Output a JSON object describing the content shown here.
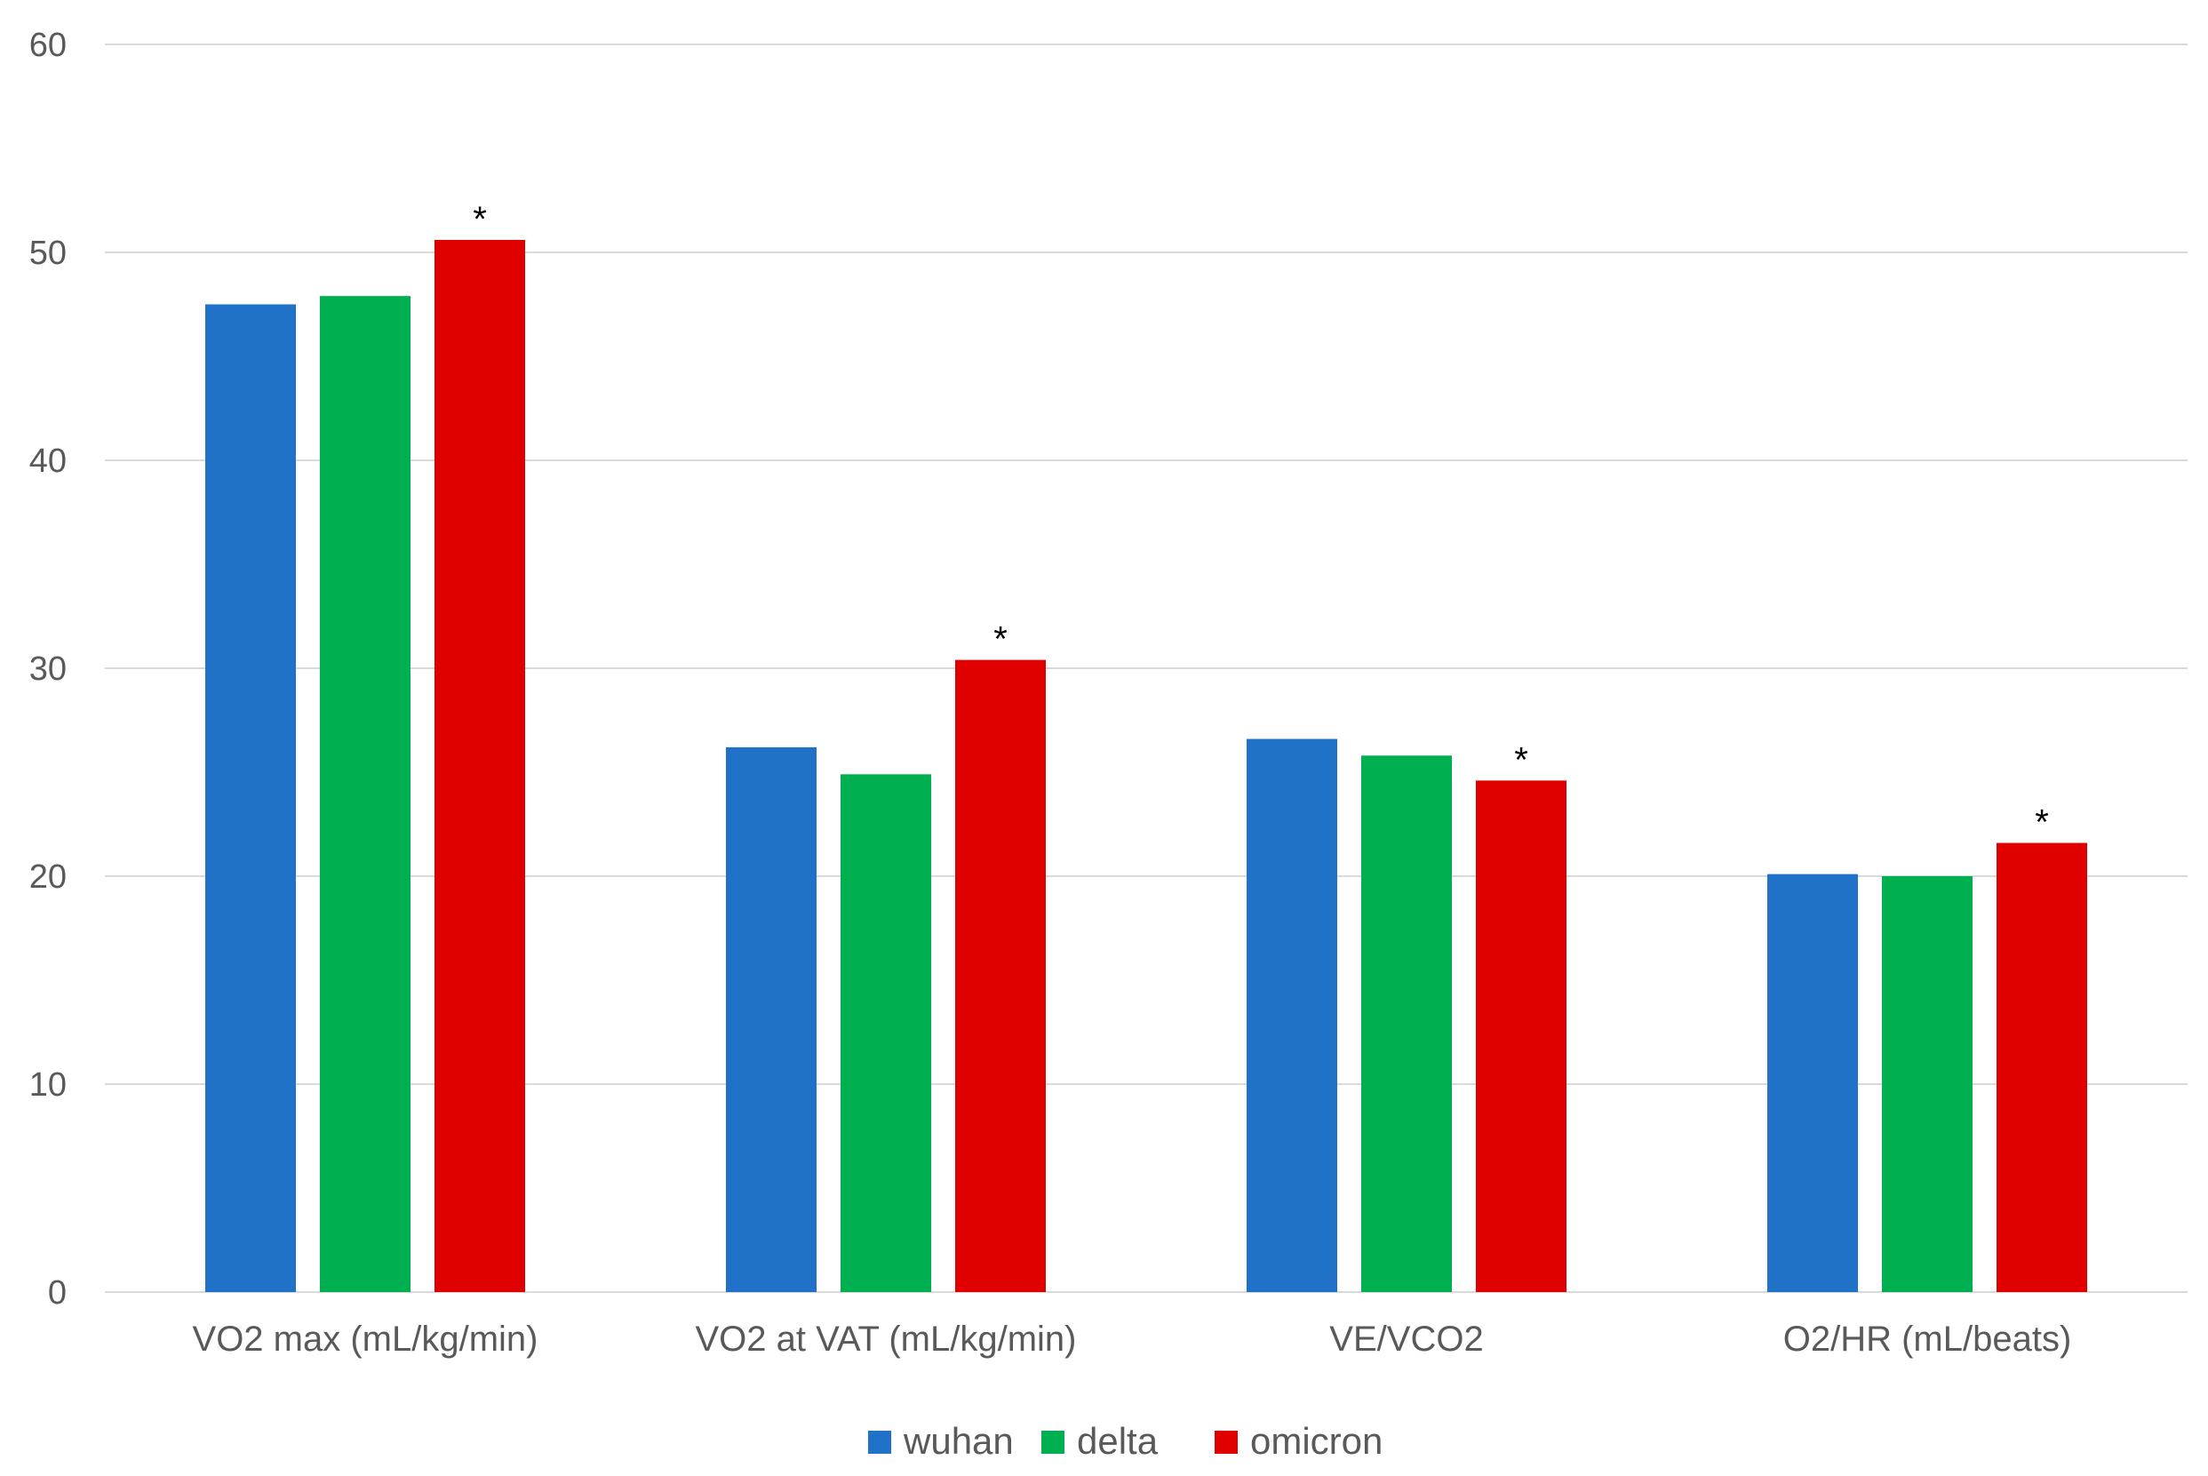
{
  "chart_data": {
    "type": "bar",
    "title": "",
    "xlabel": "",
    "ylabel": "",
    "ylim": [
      0,
      60
    ],
    "yticks": [
      0,
      10,
      20,
      30,
      40,
      50,
      60
    ],
    "grid": true,
    "legend_position": "bottom",
    "categories": [
      "VO2 max (mL/kg/min)",
      "VO2 at VAT (mL/kg/min)",
      "VE/VCO2",
      "O2/HR (mL/beats)"
    ],
    "series": [
      {
        "name": "wuhan",
        "color": "#1f72c8",
        "values": [
          47.5,
          26.2,
          26.6,
          20.1
        ]
      },
      {
        "name": "delta",
        "color": "#00b050",
        "values": [
          47.9,
          24.9,
          25.8,
          20.0
        ]
      },
      {
        "name": "omicron",
        "color": "#e00000",
        "values": [
          50.6,
          30.4,
          24.6,
          21.6
        ]
      }
    ],
    "annotations": [
      {
        "category": 0,
        "series": "omicron",
        "text": "*"
      },
      {
        "category": 1,
        "series": "omicron",
        "text": "*"
      },
      {
        "category": 2,
        "series": "omicron",
        "text": "*"
      },
      {
        "category": 3,
        "series": "omicron",
        "text": "*"
      }
    ]
  }
}
